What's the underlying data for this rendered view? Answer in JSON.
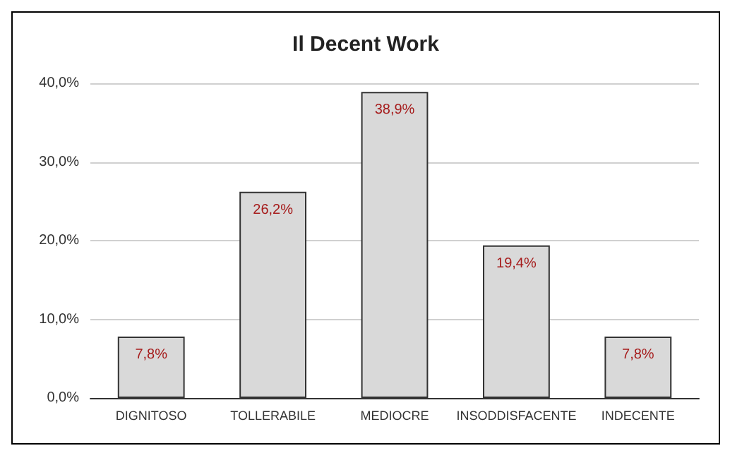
{
  "chart_data": {
    "type": "bar",
    "title": "Il Decent Work",
    "categories": [
      "DIGNITOSO",
      "TOLLERABILE",
      "MEDIOCRE",
      "INSODDISFACENTE",
      "INDECENTE"
    ],
    "values": [
      7.8,
      26.2,
      38.9,
      19.4,
      7.8
    ],
    "value_labels": [
      "7,8%",
      "26,2%",
      "38,9%",
      "19,4%",
      "7,8%"
    ],
    "color": "#d9d9d9",
    "ylim": [
      0,
      40
    ],
    "yticks": [
      {
        "value": 0,
        "label": "0,0%"
      },
      {
        "value": 10,
        "label": "10,0%"
      },
      {
        "value": 20,
        "label": "20,0%"
      },
      {
        "value": 30,
        "label": "30,0%"
      },
      {
        "value": 40,
        "label": "40,0%"
      }
    ],
    "grid": "y"
  }
}
